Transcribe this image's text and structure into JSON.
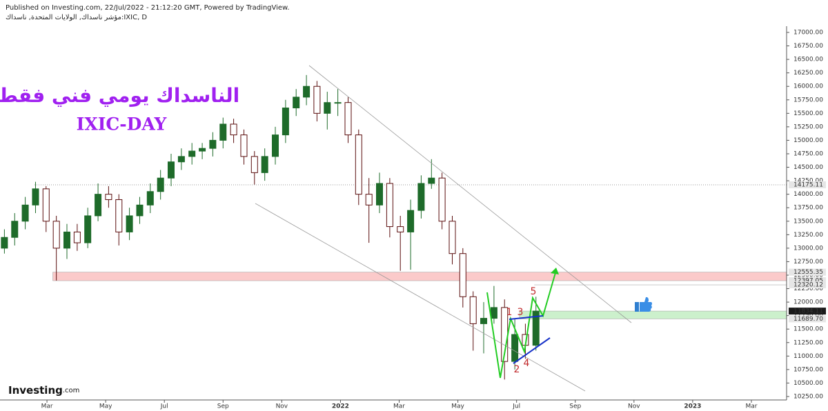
{
  "header": {
    "published": "Published on Investing.com, 22/Jul/2022 - 21:12:20 GMT, Powered by TradingView.",
    "symbol": "مؤشر ناسداك, الولايات المتحدة, ناسداك:IXIC, D"
  },
  "brand": {
    "name": "Investing",
    "suffix": ".com"
  },
  "chart_data": {
    "type": "candlestick",
    "title": "الناسداك يومي فني فقط",
    "subtitle": "IXIC-DAY",
    "title_color": "#a020f0",
    "up_color": "#1e6b2a",
    "down_color": "#5a0d0d",
    "grid": false,
    "x": [
      0.55,
      0.9,
      1.26,
      1.61,
      1.97,
      2.32,
      2.68,
      3.03,
      3.39,
      3.74,
      4.1,
      4.45,
      4.81,
      5.16,
      5.52,
      5.87,
      6.23,
      6.58,
      6.94,
      7.29,
      7.65,
      8.0,
      8.36,
      8.71,
      9.07,
      9.42,
      9.78,
      10.13,
      10.49,
      10.84,
      11.2,
      11.55,
      11.91,
      12.26,
      12.62,
      12.97,
      13.33,
      13.68,
      14.04,
      14.39,
      14.75,
      15.1,
      15.46,
      15.81,
      16.17,
      16.52,
      16.88,
      17.23,
      17.59,
      17.94,
      18.3,
      18.66
    ],
    "open": [
      13000,
      13200,
      13500,
      13800,
      14100,
      13500,
      13000,
      13300,
      13100,
      13600,
      14000,
      13900,
      13300,
      13600,
      13800,
      14050,
      14300,
      14600,
      14700,
      14800,
      14850,
      15000,
      15300,
      15100,
      14700,
      14400,
      14700,
      15100,
      15600,
      15800,
      16000,
      15500,
      15700,
      15700,
      15100,
      14000,
      13800,
      14200,
      13400,
      13300,
      13700,
      14200,
      14300,
      13500,
      12900,
      12100,
      11600,
      11700,
      11900,
      10900,
      11400,
      11200
    ],
    "high": [
      13350,
      13650,
      13950,
      14230,
      14150,
      13600,
      13450,
      13450,
      13750,
      14200,
      14150,
      14000,
      13750,
      13950,
      14200,
      14450,
      14750,
      14850,
      14950,
      14950,
      15150,
      15420,
      15400,
      15200,
      14800,
      14850,
      15250,
      15750,
      15950,
      16210,
      16100,
      15900,
      15950,
      15800,
      15200,
      14300,
      14400,
      14300,
      13600,
      13900,
      14350,
      14650,
      14400,
      13600,
      13000,
      12200,
      12000,
      12300,
      12050,
      11700,
      11600,
      12100
    ],
    "low": [
      12900,
      13050,
      13350,
      13650,
      13300,
      12400,
      12800,
      12950,
      13000,
      13500,
      13750,
      13050,
      13150,
      13450,
      13650,
      13900,
      14150,
      14450,
      14550,
      14650,
      14700,
      14850,
      14950,
      14550,
      14180,
      14250,
      14550,
      14950,
      15450,
      15650,
      15350,
      15200,
      15450,
      14950,
      13800,
      13100,
      13650,
      13200,
      12580,
      12600,
      13550,
      14100,
      13350,
      12700,
      11900,
      11100,
      11050,
      11600,
      10565,
      10750,
      10950,
      11100
    ],
    "close": [
      13200,
      13500,
      13800,
      14100,
      13500,
      13000,
      13300,
      13100,
      13600,
      14000,
      13900,
      13300,
      13600,
      13800,
      14050,
      14300,
      14600,
      14700,
      14800,
      14850,
      15000,
      15300,
      15100,
      14700,
      14400,
      14700,
      15100,
      15600,
      15800,
      16000,
      15500,
      15700,
      15700,
      15100,
      14000,
      13800,
      14200,
      13400,
      13300,
      13700,
      14200,
      14300,
      13500,
      12900,
      12100,
      11600,
      11700,
      11900,
      10900,
      11400,
      11200,
      11834.11
    ],
    "xlim": [
      0.4,
      27.2
    ],
    "xticks": [
      {
        "value": 2,
        "label": "Mar"
      },
      {
        "value": 4,
        "label": "May"
      },
      {
        "value": 6,
        "label": "Jul"
      },
      {
        "value": 8,
        "label": "Sep"
      },
      {
        "value": 10,
        "label": "Nov"
      },
      {
        "value": 12,
        "label": "2022"
      },
      {
        "value": 14,
        "label": "Mar"
      },
      {
        "value": 16,
        "label": "May"
      },
      {
        "value": 18,
        "label": "Jul"
      },
      {
        "value": 20,
        "label": "Sep"
      },
      {
        "value": 22,
        "label": "Nov"
      },
      {
        "value": 24,
        "label": "2023"
      },
      {
        "value": 26,
        "label": "Mar"
      }
    ],
    "ylim": [
      10186,
      17115
    ],
    "yticks": [
      {
        "value": 10250,
        "label": "10250.00"
      },
      {
        "value": 10500,
        "label": "10500.00"
      },
      {
        "value": 10750,
        "label": "10750.00"
      },
      {
        "value": 11000,
        "label": "11000.00"
      },
      {
        "value": 11250,
        "label": "11250.00"
      },
      {
        "value": 11500,
        "label": "11500.00"
      },
      {
        "value": 11750,
        "label": "11750.00"
      },
      {
        "value": 12000,
        "label": "12000.00"
      },
      {
        "value": 12250,
        "label": "12250.00"
      },
      {
        "value": 12500,
        "label": "12500.00"
      },
      {
        "value": 12750,
        "label": "12750.00"
      },
      {
        "value": 13000,
        "label": "13000.00"
      },
      {
        "value": 13250,
        "label": "13250.00"
      },
      {
        "value": 13500,
        "label": "13500.00"
      },
      {
        "value": 13750,
        "label": "13750.00"
      },
      {
        "value": 14000,
        "label": "14000.00"
      },
      {
        "value": 14250,
        "label": "14250.00"
      },
      {
        "value": 14500,
        "label": "14500.00"
      },
      {
        "value": 14750,
        "label": "14750.00"
      },
      {
        "value": 15000,
        "label": "15000.00"
      },
      {
        "value": 15250,
        "label": "15250.00"
      },
      {
        "value": 15500,
        "label": "15500.00"
      },
      {
        "value": 15750,
        "label": "15750.00"
      },
      {
        "value": 16000,
        "label": "16000.00"
      },
      {
        "value": 16250,
        "label": "16250.00"
      },
      {
        "value": 16500,
        "label": "16500.00"
      },
      {
        "value": 16750,
        "label": "16750.00"
      },
      {
        "value": 17000,
        "label": "17000.00"
      }
    ],
    "levels": [
      {
        "value": 14175.11,
        "label": "14175.11",
        "color": "#e6e6e6"
      },
      {
        "value": 12555.35,
        "label": "12555.35",
        "color": "#e6e6e6"
      },
      {
        "value": 12397.05,
        "label": "12397.05",
        "color": "#e6e6e6"
      },
      {
        "value": 12320.12,
        "label": "12320.12",
        "color": "#e6e6e6"
      },
      {
        "value": 11834.11,
        "label": "11834.11",
        "color": "#1b1b1b"
      },
      {
        "value": 11689.7,
        "label": "11689.70",
        "color": "#e6e6e6"
      }
    ],
    "zones": [
      {
        "from": 12397.05,
        "to": 12555.35,
        "start": 2.2,
        "color": "#fbcaca"
      },
      {
        "from": 11689.7,
        "to": 11834.11,
        "start": 18.1,
        "color": "#ccf0cc"
      }
    ],
    "wave_labels": [
      "1",
      "2",
      "3",
      "4",
      "5"
    ]
  }
}
